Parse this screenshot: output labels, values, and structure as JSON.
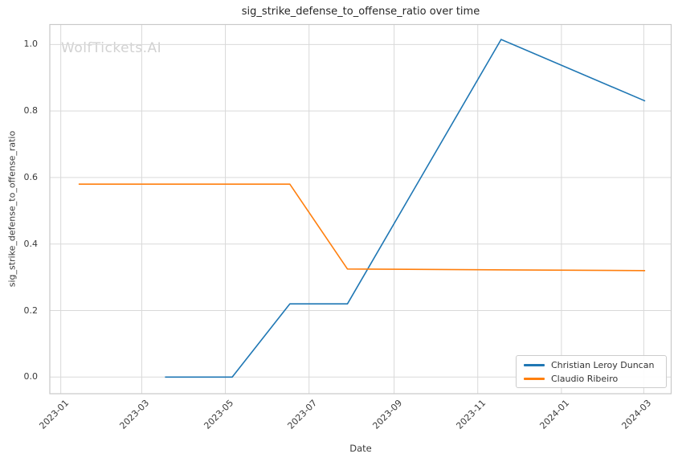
{
  "watermark": "WolfTickets.AI",
  "chart_data": {
    "type": "line",
    "title": "sig_strike_defense_to_offense_ratio over time",
    "xlabel": "Date",
    "ylabel": "sig_strike_defense_to_offense_ratio",
    "x_tick_labels": [
      "2023-01",
      "2023-03",
      "2023-05",
      "2023-07",
      "2023-09",
      "2023-11",
      "2024-01",
      "2024-03"
    ],
    "y_ticks": [
      0.0,
      0.2,
      0.4,
      0.6,
      0.8,
      1.0
    ],
    "y_tick_labels": [
      "0.0",
      "0.2",
      "0.4",
      "0.6",
      "0.8",
      "1.0"
    ],
    "xlim": [
      "2022-12-24",
      "2024-03-21"
    ],
    "ylim": [
      -0.05,
      1.06
    ],
    "grid": true,
    "legend_position": "lower-right",
    "series": [
      {
        "name": "Christian Leroy Duncan",
        "color": "#1f77b4",
        "points": [
          {
            "date": "2023-03-18",
            "value": 0.0
          },
          {
            "date": "2023-05-06",
            "value": 0.0
          },
          {
            "date": "2023-06-17",
            "value": 0.22
          },
          {
            "date": "2023-07-29",
            "value": 0.22
          },
          {
            "date": "2023-11-18",
            "value": 1.015
          },
          {
            "date": "2024-03-02",
            "value": 0.83
          }
        ]
      },
      {
        "name": "Claudio Ribeiro",
        "color": "#ff7f0e",
        "points": [
          {
            "date": "2023-01-14",
            "value": 0.58
          },
          {
            "date": "2023-06-17",
            "value": 0.58
          },
          {
            "date": "2023-07-29",
            "value": 0.325
          },
          {
            "date": "2024-03-02",
            "value": 0.32
          }
        ]
      }
    ],
    "style_colors": {
      "grid": "#d9d9d9",
      "spine": "#c9c9c9",
      "text": "#3a3a3a",
      "watermark": "#d2d2d2"
    }
  }
}
